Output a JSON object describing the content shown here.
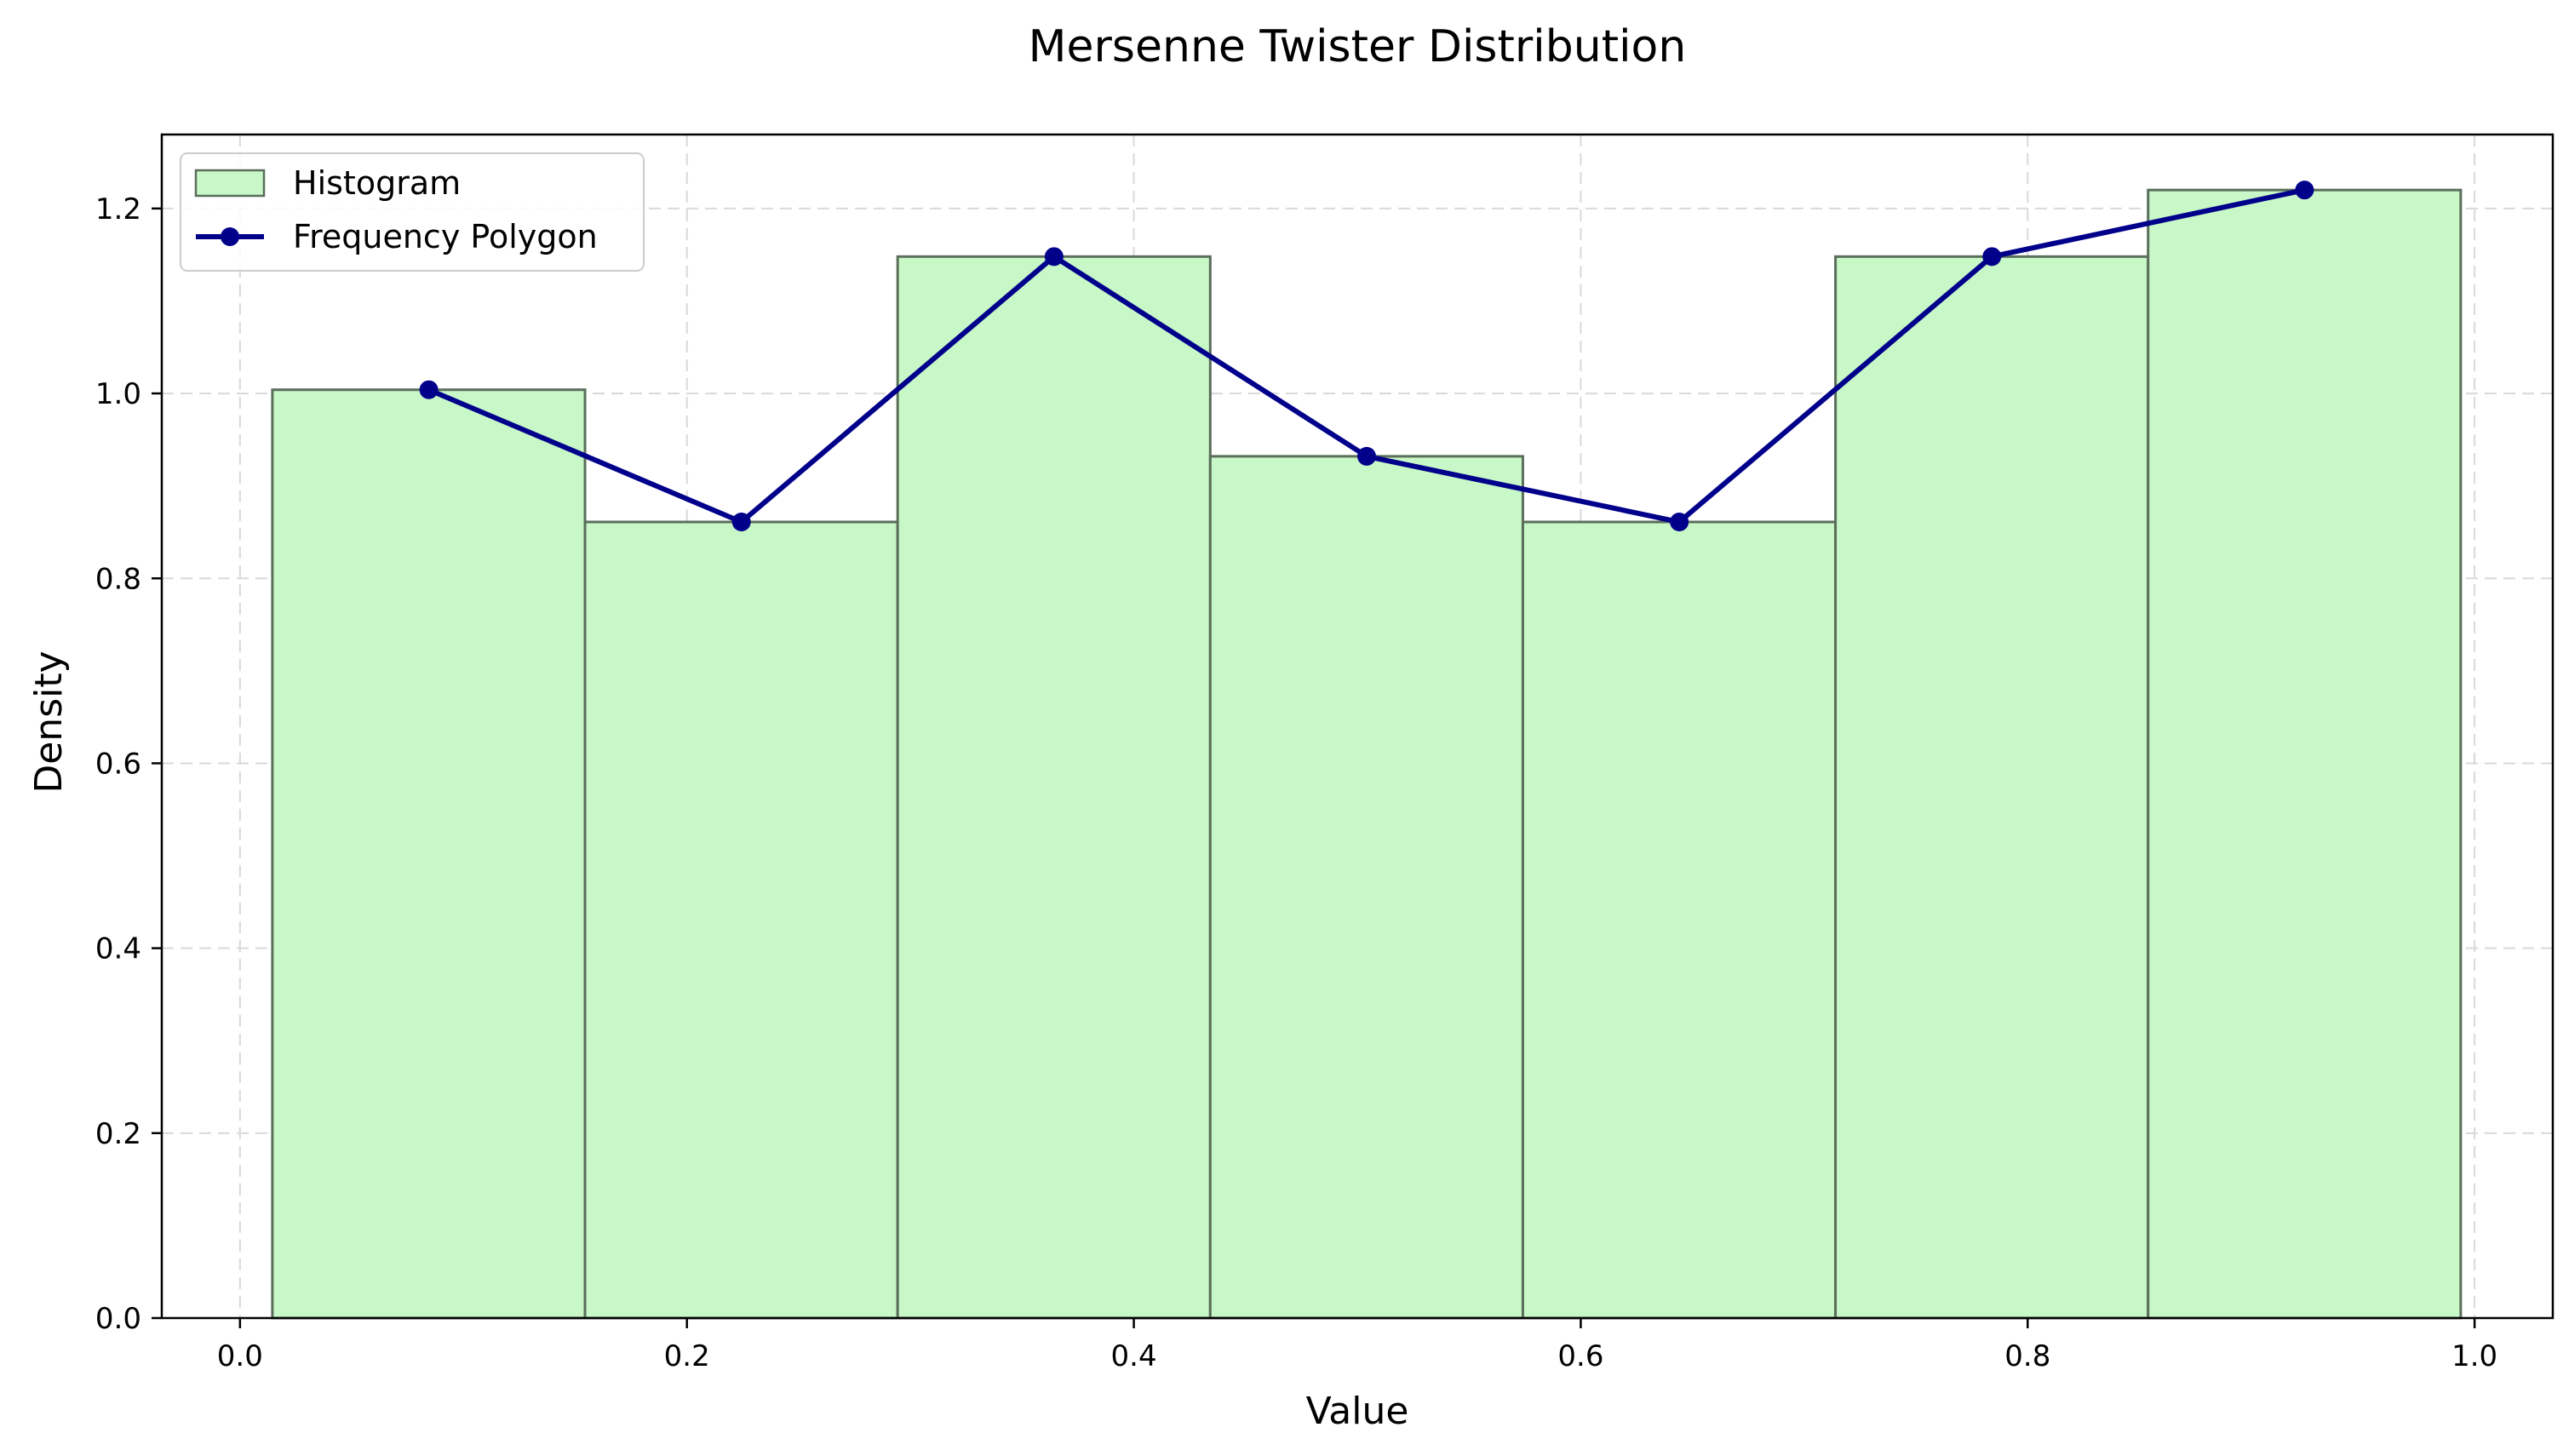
{
  "chart_data": {
    "type": "bar",
    "title": "Mersenne Twister Distribution",
    "xlabel": "Value",
    "ylabel": "Density",
    "xlim": [
      -0.035,
      1.035
    ],
    "ylim": [
      0.0,
      1.28
    ],
    "xticks": [
      0.0,
      0.2,
      0.4,
      0.6,
      0.8,
      1.0
    ],
    "xtick_labels": [
      "0.0",
      "0.2",
      "0.4",
      "0.6",
      "0.8",
      "1.0"
    ],
    "yticks": [
      0.0,
      0.2,
      0.4,
      0.6,
      0.8,
      1.0,
      1.2
    ],
    "ytick_labels": [
      "0.0",
      "0.2",
      "0.4",
      "0.6",
      "0.8",
      "1.0",
      "1.2"
    ],
    "grid": true,
    "legend_position": "top-left",
    "histogram": {
      "name": "Histogram",
      "color": "#c8f7c8",
      "edge_color": "#5a6e5a",
      "bin_edges": [
        0.0145,
        0.1544,
        0.2943,
        0.4342,
        0.5741,
        0.714,
        0.8539,
        0.9938
      ],
      "values": [
        1.004,
        0.861,
        1.148,
        0.932,
        0.861,
        1.148,
        1.22
      ]
    },
    "polygon": {
      "name": "Frequency Polygon",
      "color": "#00008b",
      "x": [
        0.0845,
        0.2244,
        0.3643,
        0.5042,
        0.6441,
        0.784,
        0.9239
      ],
      "y": [
        1.004,
        0.861,
        1.148,
        0.932,
        0.861,
        1.148,
        1.22
      ]
    }
  }
}
